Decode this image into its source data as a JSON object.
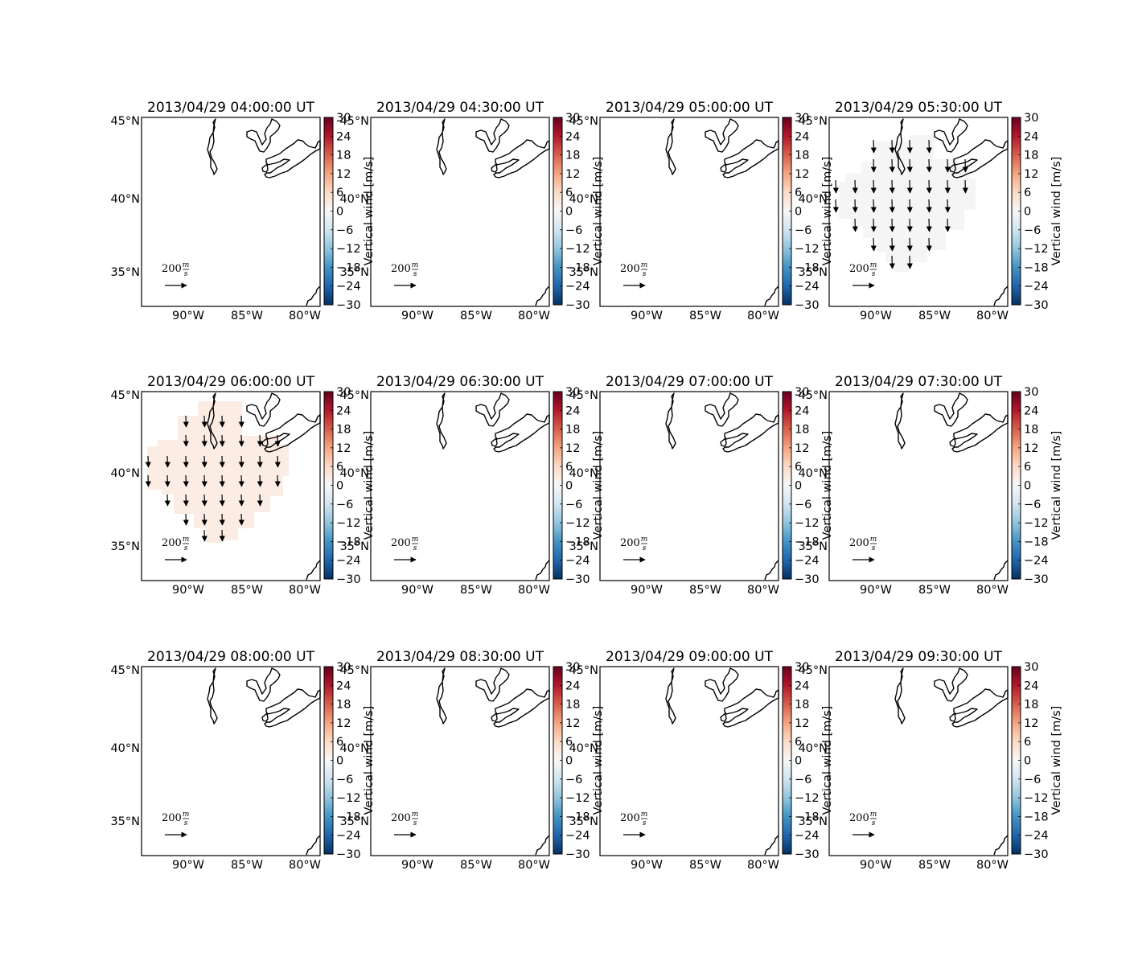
{
  "figure": {
    "colorbar_label": "Vertical wind [m/s]",
    "colorbar_ticks": [
      "30",
      "24",
      "18",
      "12",
      "6",
      "0",
      "−6",
      "−12",
      "−18",
      "−24",
      "−30"
    ],
    "colorbar_range": [
      -30,
      30
    ],
    "lat_ticks": [
      "45°N",
      "40°N",
      "35°N"
    ],
    "lon_ticks": [
      "90°W",
      "85°W",
      "80°W"
    ],
    "reference_vector": {
      "value": "200",
      "unit_num": "m",
      "unit_den": "s"
    },
    "colors": {
      "frame": "#000000",
      "region_0530": "#f5f5f5",
      "region_0600": "#fbece4"
    },
    "panels": [
      {
        "title": "2013/04/29 04:00:00 UT",
        "has_region": false
      },
      {
        "title": "2013/04/29 04:30:00 UT",
        "has_region": false
      },
      {
        "title": "2013/04/29 05:00:00 UT",
        "has_region": false
      },
      {
        "title": "2013/04/29 05:30:00 UT",
        "has_region": true,
        "region_color": "#f5f5f5"
      },
      {
        "title": "2013/04/29 06:00:00 UT",
        "has_region": true,
        "region_color": "#fbece4"
      },
      {
        "title": "2013/04/29 06:30:00 UT",
        "has_region": false
      },
      {
        "title": "2013/04/29 07:00:00 UT",
        "has_region": false
      },
      {
        "title": "2013/04/29 07:30:00 UT",
        "has_region": false
      },
      {
        "title": "2013/04/29 08:00:00 UT",
        "has_region": false
      },
      {
        "title": "2013/04/29 08:30:00 UT",
        "has_region": false
      },
      {
        "title": "2013/04/29 09:00:00 UT",
        "has_region": false
      },
      {
        "title": "2013/04/29 09:30:00 UT",
        "has_region": false
      }
    ]
  }
}
